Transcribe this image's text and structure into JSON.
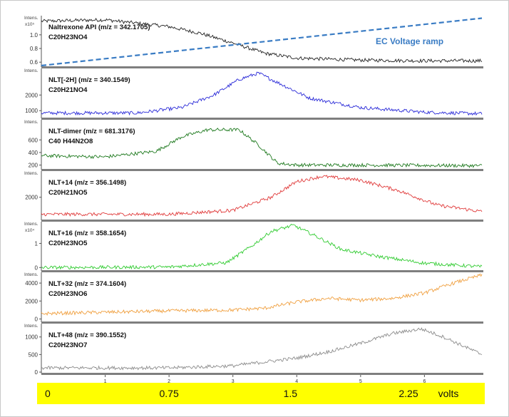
{
  "chart_data": {
    "type": "line",
    "colors": {
      "naltrexone": "#222222",
      "nlt_2h": "#2b2bd8",
      "nlt_dimer": "#1f7a1f",
      "nlt_14": "#e03a3a",
      "nlt_16": "#33cc33",
      "nlt_32": "#f0a040",
      "nlt_48": "#8c8c8c",
      "ramp": "#3a7cc4",
      "volt_band": "#ffff00",
      "separator": "#7f7f7f"
    },
    "time_axis": {
      "range": [
        0,
        6.9
      ],
      "ticks": [
        "1",
        "2",
        "3",
        "4",
        "5",
        "6"
      ],
      "values": [
        1,
        2,
        3,
        4,
        5,
        6
      ]
    },
    "intens_label": "Intens.",
    "voltage_axis": {
      "unit": "volts",
      "ticks": [
        {
          "label": "0",
          "t": 0.1
        },
        {
          "label": "0.75",
          "t": 2.0
        },
        {
          "label": "1.5",
          "t": 3.9
        },
        {
          "label": "2.25",
          "t": 5.75
        }
      ]
    },
    "ramp_label": "EC Voltage ramp",
    "ramp_line": {
      "t_start": 0.0,
      "t_end": 6.9,
      "frac_start": 0.0,
      "frac_end": 0.95
    },
    "panels": [
      {
        "id": "naltrexone",
        "name": "Naltrexone API (m/z = 342.1705)",
        "formula": "C20H23NO4",
        "scale": "x10⁵",
        "ylim": [
          0.55,
          1.28
        ],
        "yticks": [
          {
            "label": "1.0",
            "v": 1.0
          },
          {
            "label": "0.8",
            "v": 0.8
          },
          {
            "label": "0.6",
            "v": 0.6
          }
        ],
        "profile": [
          [
            0.0,
            1.2
          ],
          [
            1.0,
            1.22
          ],
          [
            2.0,
            1.12
          ],
          [
            2.5,
            1.02
          ],
          [
            3.0,
            0.88
          ],
          [
            3.5,
            0.73
          ],
          [
            4.0,
            0.66
          ],
          [
            5.0,
            0.63
          ],
          [
            6.0,
            0.62
          ],
          [
            6.9,
            0.62
          ]
        ]
      },
      {
        "id": "nlt_2h",
        "name": "NLT[-2H] (m/z = 340.1549)",
        "formula": "C20H21NO4",
        "scale": "",
        "ylim": [
          600,
          3700
        ],
        "yticks": [
          {
            "label": "2000",
            "v": 2000
          },
          {
            "label": "1000",
            "v": 1000
          }
        ],
        "profile": [
          [
            0.0,
            850
          ],
          [
            1.5,
            850
          ],
          [
            2.2,
            1200
          ],
          [
            2.7,
            2000
          ],
          [
            3.1,
            3000
          ],
          [
            3.4,
            3400
          ],
          [
            3.7,
            2800
          ],
          [
            4.2,
            1800
          ],
          [
            5.0,
            1200
          ],
          [
            6.0,
            900
          ],
          [
            6.9,
            800
          ]
        ]
      },
      {
        "id": "nlt_dimer",
        "name": "NLT-dimer (m/z = 681.3176)",
        "formula": "C40 H44N2O8",
        "scale": "",
        "ylim": [
          150,
          920
        ],
        "yticks": [
          {
            "label": "600",
            "v": 600
          },
          {
            "label": "400",
            "v": 400
          },
          {
            "label": "200",
            "v": 200
          }
        ],
        "profile": [
          [
            0.0,
            350
          ],
          [
            1.0,
            330
          ],
          [
            1.8,
            420
          ],
          [
            2.2,
            650
          ],
          [
            2.6,
            760
          ],
          [
            3.1,
            760
          ],
          [
            3.4,
            520
          ],
          [
            3.7,
            230
          ],
          [
            4.0,
            200
          ],
          [
            5.0,
            200
          ],
          [
            6.9,
            190
          ]
        ]
      },
      {
        "id": "nlt_14",
        "name": "NLT+14 (m/z = 356.1498)",
        "formula": "C20H21NO5",
        "scale": "",
        "ylim": [
          350,
          4000
        ],
        "yticks": [
          {
            "label": "2000",
            "v": 2000
          }
        ],
        "profile": [
          [
            0.0,
            700
          ],
          [
            2.0,
            700
          ],
          [
            3.0,
            1000
          ],
          [
            3.6,
            2000
          ],
          [
            4.0,
            3200
          ],
          [
            4.4,
            3600
          ],
          [
            5.0,
            3300
          ],
          [
            5.6,
            2500
          ],
          [
            6.2,
            1400
          ],
          [
            6.9,
            900
          ]
        ]
      },
      {
        "id": "nlt_16",
        "name": "NLT+16 (m/z = 358.1654)",
        "formula": "C20H23NO5",
        "scale": "x10⁴",
        "ylim": [
          -0.08,
          1.9
        ],
        "yticks": [
          {
            "label": "1",
            "v": 1.0
          },
          {
            "label": "0",
            "v": 0.0
          }
        ],
        "profile": [
          [
            0.0,
            0.0
          ],
          [
            2.0,
            0.02
          ],
          [
            2.9,
            0.2
          ],
          [
            3.3,
            0.9
          ],
          [
            3.6,
            1.5
          ],
          [
            3.95,
            1.75
          ],
          [
            4.3,
            1.3
          ],
          [
            4.7,
            0.75
          ],
          [
            5.3,
            0.45
          ],
          [
            6.0,
            0.18
          ],
          [
            6.9,
            0.03
          ]
        ]
      },
      {
        "id": "nlt_32",
        "name": "NLT+32 (m/z = 374.1604)",
        "formula": "C20H23NO6",
        "scale": "",
        "ylim": [
          -200,
          5200
        ],
        "yticks": [
          {
            "label": "4000",
            "v": 4000
          },
          {
            "label": "2000",
            "v": 2000
          },
          {
            "label": "0",
            "v": 0
          }
        ],
        "profile": [
          [
            0.0,
            600
          ],
          [
            2.0,
            900
          ],
          [
            3.0,
            1000
          ],
          [
            3.5,
            1200
          ],
          [
            4.0,
            1900
          ],
          [
            4.5,
            2300
          ],
          [
            5.0,
            2100
          ],
          [
            5.5,
            2300
          ],
          [
            6.0,
            2900
          ],
          [
            6.5,
            4100
          ],
          [
            6.9,
            4900
          ]
        ]
      },
      {
        "id": "nlt_48",
        "name": "NLT+48 (m/z = 390.1552)",
        "formula": "C20H23NO7",
        "scale": "",
        "ylim": [
          0,
          1380
        ],
        "yticks": [
          {
            "label": "1000",
            "v": 1000
          },
          {
            "label": "500",
            "v": 500
          },
          {
            "label": "0",
            "v": 0
          }
        ],
        "profile": [
          [
            0.0,
            120
          ],
          [
            2.0,
            120
          ],
          [
            3.0,
            180
          ],
          [
            4.0,
            400
          ],
          [
            4.5,
            580
          ],
          [
            5.0,
            820
          ],
          [
            5.5,
            1100
          ],
          [
            5.95,
            1230
          ],
          [
            6.3,
            1000
          ],
          [
            6.9,
            500
          ]
        ]
      }
    ]
  }
}
